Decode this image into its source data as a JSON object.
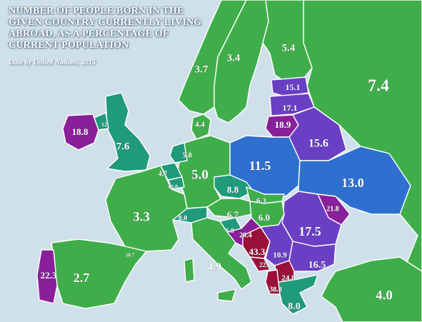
{
  "title": "NUMBER OF PEOPLE BORN IN THE GIVEN COUNTRY CURRENTLY LIVING ABROAD, AS A PERCENTAGE OF CURRENT POPULATION",
  "source": "Data by United Nations, 2015",
  "colors": {
    "sea": "#cfe0ea",
    "green": "#3fae4a",
    "teal": "#1f9a7a",
    "blue": "#2f6fcf",
    "violet": "#6a3fc4",
    "purple": "#8a1f9a",
    "maroon": "#9a1038",
    "border": "#ffffff"
  },
  "regions": [
    {
      "id": "norway",
      "value": "3.7"
    },
    {
      "id": "sweden",
      "value": "3.4"
    },
    {
      "id": "finland",
      "value": "5.4"
    },
    {
      "id": "russia",
      "value": "7.4"
    },
    {
      "id": "estonia",
      "value": "15.1"
    },
    {
      "id": "latvia",
      "value": "17.1"
    },
    {
      "id": "lithuania",
      "value": "18.9"
    },
    {
      "id": "ireland",
      "value": "18.8"
    },
    {
      "id": "northern-ireland",
      "value": "12"
    },
    {
      "id": "uk",
      "value": "7.6"
    },
    {
      "id": "denmark",
      "value": "4.4"
    },
    {
      "id": "netherlands",
      "value": "5.8"
    },
    {
      "id": "belgium",
      "value": "4.7"
    },
    {
      "id": "luxembourg",
      "value": "10.8"
    },
    {
      "id": "germany",
      "value": "5.0"
    },
    {
      "id": "poland",
      "value": "11.5"
    },
    {
      "id": "belarus",
      "value": "15.6"
    },
    {
      "id": "ukraine",
      "value": "13.0"
    },
    {
      "id": "moldova",
      "value": "21.8"
    },
    {
      "id": "czechia",
      "value": "8.8"
    },
    {
      "id": "slovakia",
      "value": "6.3"
    },
    {
      "id": "austria",
      "value": "6.7"
    },
    {
      "id": "hungary",
      "value": "6.0"
    },
    {
      "id": "switzerland",
      "value": "8.0"
    },
    {
      "id": "france",
      "value": "3.3"
    },
    {
      "id": "slovenia",
      "value": "6.8"
    },
    {
      "id": "croatia",
      "value": "20.4"
    },
    {
      "id": "bosnia",
      "value": "43.3"
    },
    {
      "id": "serbia",
      "value": "10.9"
    },
    {
      "id": "montenegro",
      "value": "22.1"
    },
    {
      "id": "romania",
      "value": "17.5"
    },
    {
      "id": "bulgaria",
      "value": "16.5"
    },
    {
      "id": "macedonia",
      "value": "24.8"
    },
    {
      "id": "albania",
      "value": "38.8"
    },
    {
      "id": "italy",
      "value": "4.9"
    },
    {
      "id": "andorra",
      "value": "10.7"
    },
    {
      "id": "spain",
      "value": "2.7"
    },
    {
      "id": "portugal",
      "value": "22.3"
    },
    {
      "id": "greece",
      "value": "8.0"
    },
    {
      "id": "turkey",
      "value": "4.0"
    }
  ]
}
